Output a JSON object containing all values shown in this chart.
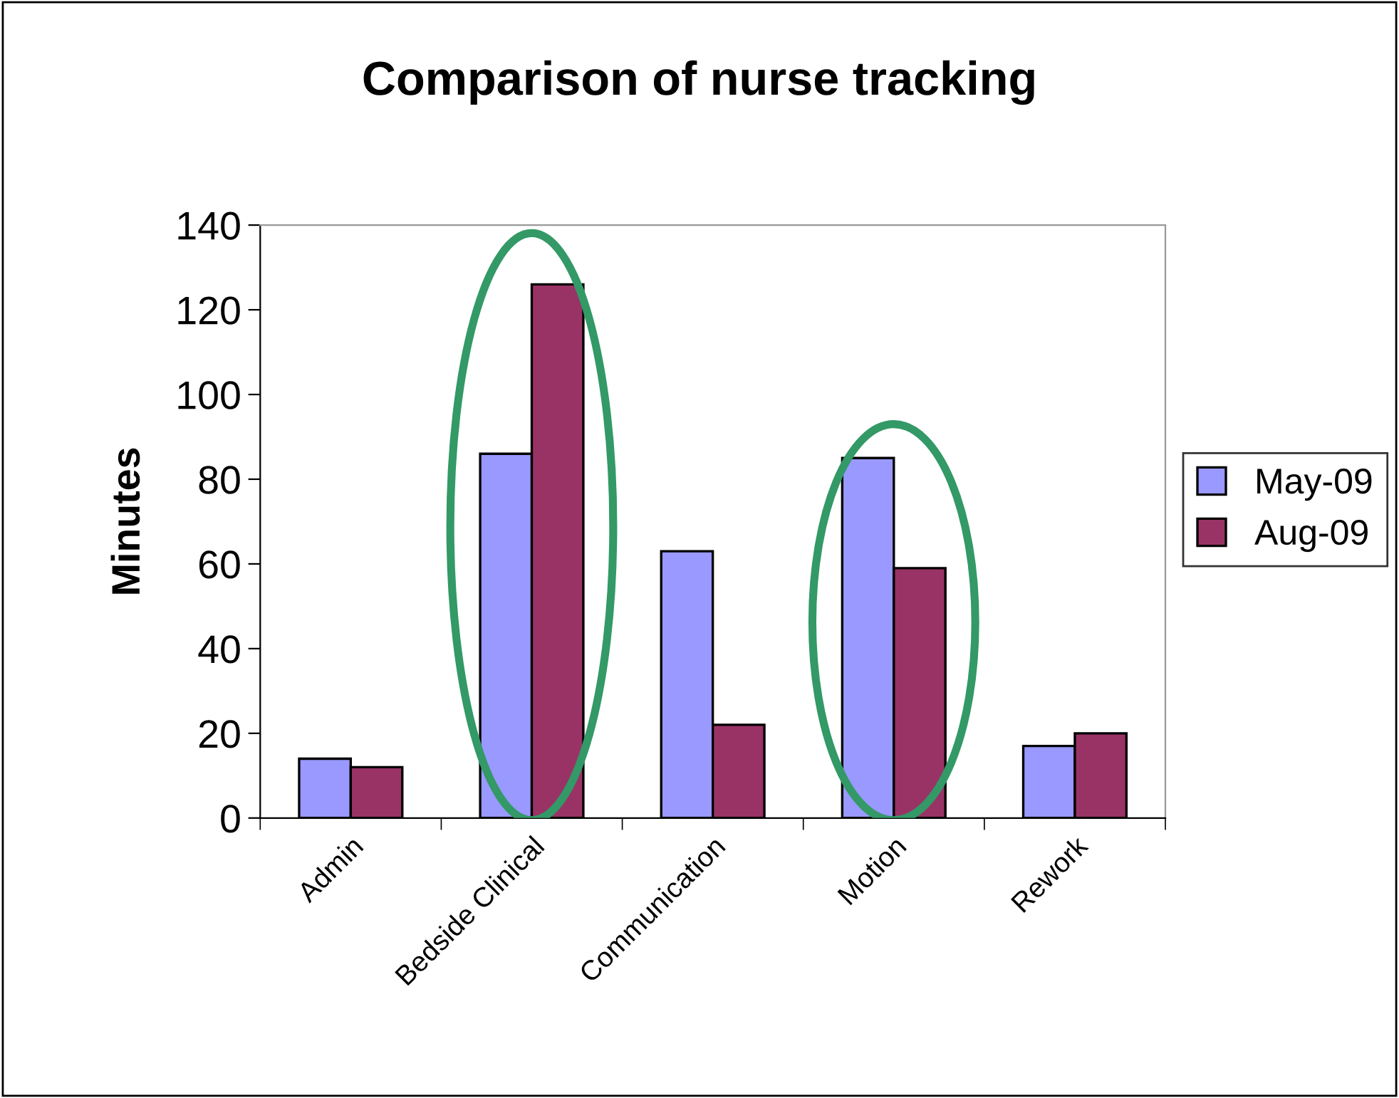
{
  "chart_data": {
    "type": "bar",
    "title": "Comparison of nurse tracking",
    "ylabel": "Minutes",
    "categories": [
      "Admin",
      "Bedside Clinical",
      "Communication",
      "Motion",
      "Rework"
    ],
    "series": [
      {
        "name": "May-09",
        "color": "#9999ff",
        "values": [
          14,
          86,
          63,
          85,
          17
        ]
      },
      {
        "name": "Aug-09",
        "color": "#993366",
        "values": [
          12,
          126,
          22,
          59,
          20
        ]
      }
    ],
    "ylim": [
      0,
      140
    ],
    "yticks": [
      0,
      20,
      40,
      60,
      80,
      100,
      120,
      140
    ],
    "grid": false,
    "legend": "right"
  }
}
